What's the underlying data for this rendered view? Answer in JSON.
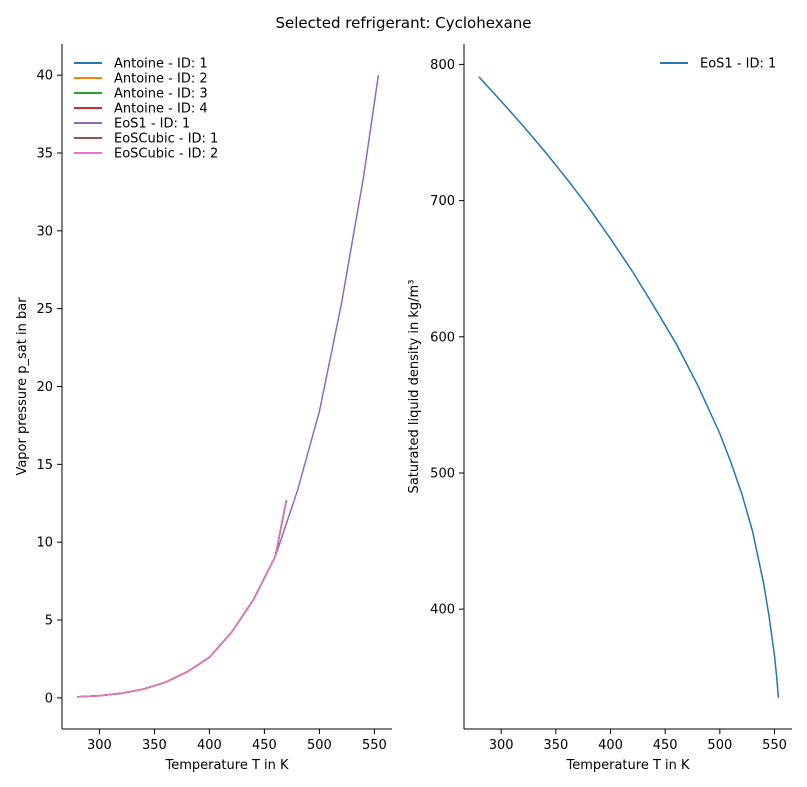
{
  "figure_title": "Selected refrigerant: Cyclohexane",
  "chart_data": [
    {
      "type": "line",
      "xlabel": "Temperature T in K",
      "ylabel": "Vapor pressure p_sat in bar",
      "xlim": [
        266,
        566
      ],
      "ylim": [
        -2,
        42
      ],
      "xticks": [
        300,
        350,
        400,
        450,
        500,
        550
      ],
      "yticks": [
        0,
        5,
        10,
        15,
        20,
        25,
        30,
        35,
        40
      ],
      "legend_position": "upper-left",
      "grid": false,
      "series": [
        {
          "name": "Antoine - ID: 1",
          "color": "#1f77b4",
          "x": [
            280,
            300,
            320,
            340,
            360,
            380,
            400,
            420,
            440,
            460,
            470
          ],
          "y": [
            0.06,
            0.14,
            0.29,
            0.56,
            1.0,
            1.68,
            2.6,
            4.2,
            6.3,
            9.1,
            12.7
          ]
        },
        {
          "name": "Antoine - ID: 2",
          "color": "#ff7f0e",
          "x": [
            280,
            300,
            320,
            340,
            360,
            380,
            400,
            420,
            440,
            460,
            470
          ],
          "y": [
            0.06,
            0.14,
            0.29,
            0.56,
            1.0,
            1.68,
            2.6,
            4.2,
            6.3,
            9.1,
            12.7
          ]
        },
        {
          "name": "Antoine - ID: 3",
          "color": "#2ca02c",
          "x": [
            280,
            300,
            320,
            340,
            360,
            380,
            400,
            420,
            440,
            460,
            470
          ],
          "y": [
            0.06,
            0.14,
            0.29,
            0.56,
            1.0,
            1.68,
            2.6,
            4.2,
            6.3,
            9.1,
            12.7
          ]
        },
        {
          "name": "Antoine - ID: 4",
          "color": "#d62728",
          "x": [
            280,
            300,
            320,
            340,
            360,
            380,
            400,
            420,
            440,
            460,
            470
          ],
          "y": [
            0.06,
            0.14,
            0.29,
            0.56,
            1.0,
            1.68,
            2.6,
            4.2,
            6.3,
            9.1,
            12.7
          ]
        },
        {
          "name": "EoS1 - ID: 1",
          "color": "#9467bd",
          "x": [
            280,
            300,
            320,
            340,
            360,
            380,
            400,
            420,
            440,
            460,
            480,
            500,
            520,
            540,
            553.6
          ],
          "y": [
            0.06,
            0.14,
            0.29,
            0.56,
            1.0,
            1.68,
            2.6,
            4.2,
            6.3,
            9.1,
            13.3,
            18.4,
            25.3,
            33.4,
            40.0
          ]
        },
        {
          "name": "EoSCubic - ID: 1",
          "color": "#8c564b",
          "x": [
            280,
            300,
            320,
            340,
            360,
            380,
            400,
            420,
            440,
            460,
            470
          ],
          "y": [
            0.06,
            0.14,
            0.29,
            0.56,
            1.0,
            1.68,
            2.6,
            4.2,
            6.3,
            9.1,
            12.7
          ]
        },
        {
          "name": "EoSCubic - ID: 2",
          "color": "#e377c2",
          "x": [
            280,
            300,
            320,
            340,
            360,
            380,
            400,
            420,
            440,
            460,
            470
          ],
          "y": [
            0.06,
            0.14,
            0.29,
            0.56,
            1.0,
            1.68,
            2.6,
            4.2,
            6.3,
            9.1,
            12.7
          ]
        }
      ]
    },
    {
      "type": "line",
      "xlabel": "Temperature T in K",
      "ylabel": "Saturated liquid density in kg/m³",
      "xlim": [
        266,
        566
      ],
      "ylim": [
        312,
        815
      ],
      "xticks": [
        300,
        350,
        400,
        450,
        500,
        550
      ],
      "yticks": [
        400,
        500,
        600,
        700,
        800
      ],
      "legend_position": "upper-right",
      "grid": false,
      "series": [
        {
          "name": "EoS1 - ID: 1",
          "color": "#1f77b4",
          "x": [
            279.5,
            300,
            320,
            340,
            360,
            380,
            400,
            420,
            440,
            460,
            480,
            500,
            510,
            520,
            530,
            540,
            545,
            550,
            552,
            553.6
          ],
          "y": [
            791,
            773,
            755,
            736,
            716,
            695,
            672,
            648,
            622,
            595,
            564,
            529,
            508,
            485,
            457,
            419,
            395,
            366,
            350,
            335
          ]
        }
      ]
    }
  ]
}
